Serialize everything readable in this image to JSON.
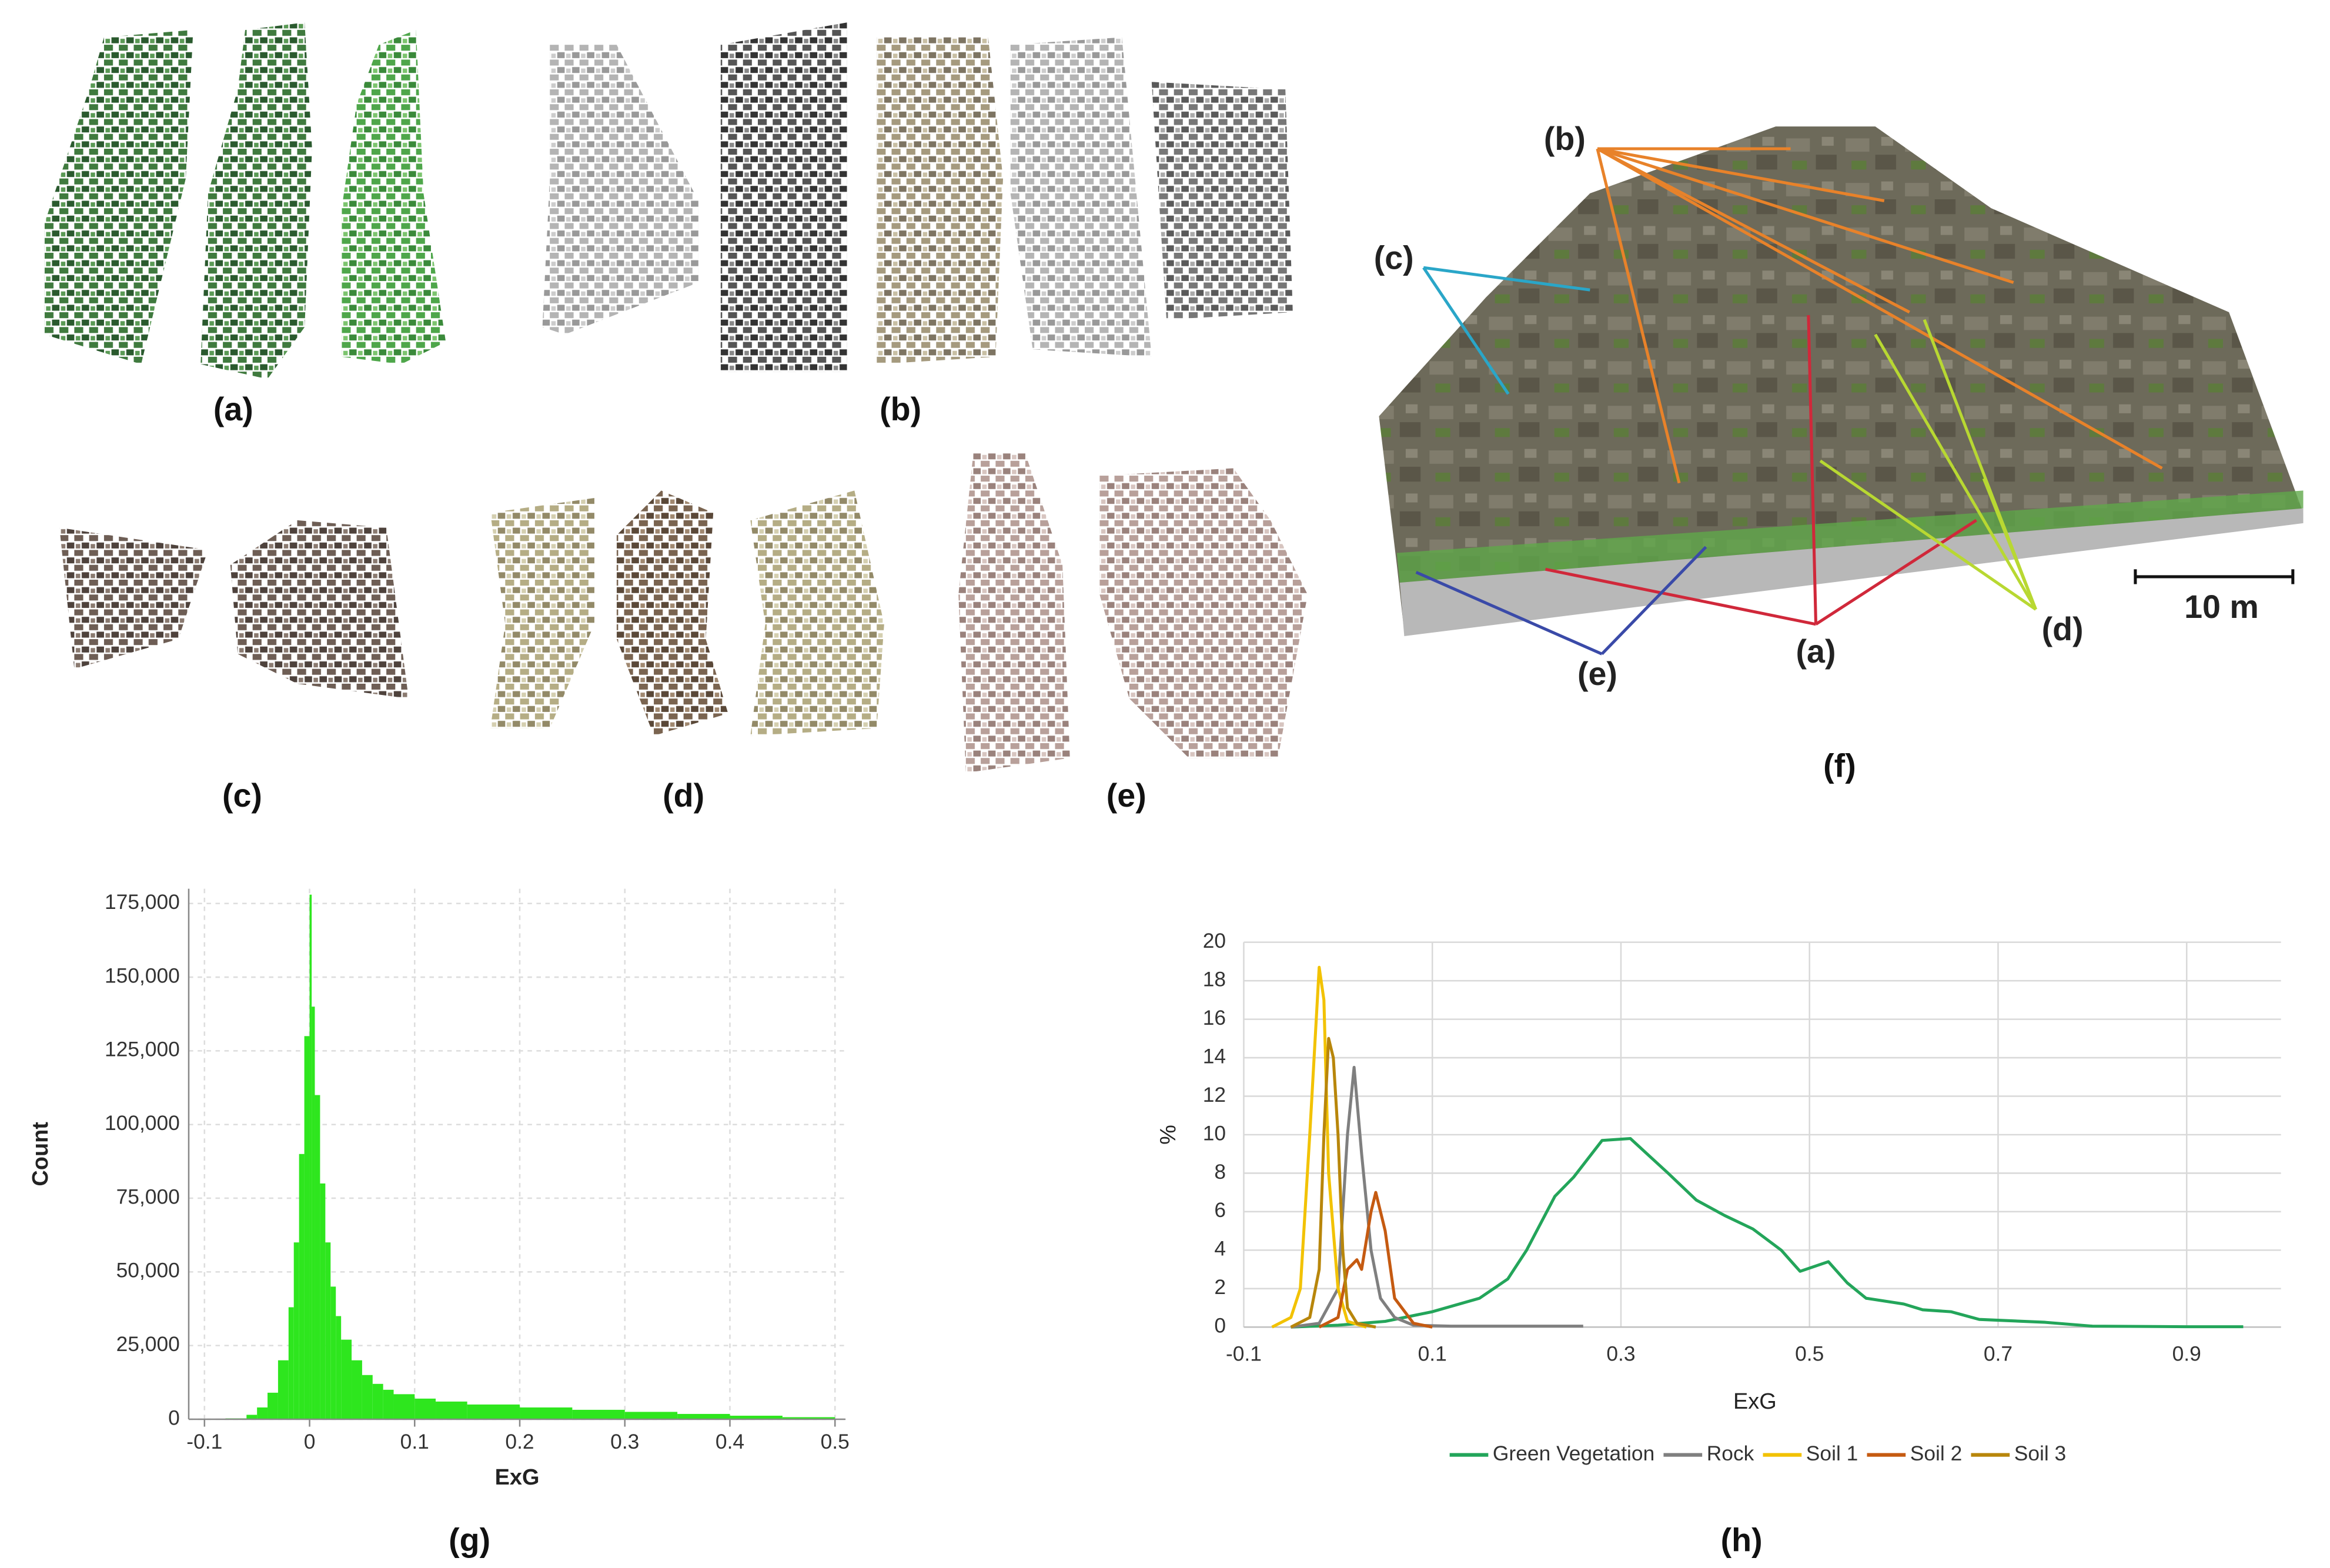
{
  "panel_labels": [
    "(a)",
    "(b)",
    "(c)",
    "(d)",
    "(e)",
    "(f)",
    "(g)",
    "(h)"
  ],
  "annotations": [
    {
      "text": "(b)",
      "color": "#e8822a"
    },
    {
      "text": "(c)",
      "color": "#2aa6c8"
    },
    {
      "text": "(a)",
      "color": "#d0283a"
    },
    {
      "text": "(d)",
      "color": "#b8d832"
    },
    {
      "text": "(e)",
      "color": "#3a4aa8"
    }
  ],
  "scale_bar": "10 m",
  "chart_data": [
    {
      "type": "histogram",
      "x_label": "ExG",
      "y_label": "Count",
      "bins": [
        -0.1,
        -0.08,
        -0.06,
        -0.05,
        -0.04,
        -0.03,
        -0.02,
        -0.015,
        -0.01,
        -0.005,
        0,
        0.002,
        0.005,
        0.01,
        0.015,
        0.02,
        0.025,
        0.03,
        0.04,
        0.05,
        0.06,
        0.07,
        0.08,
        0.1,
        0.12,
        0.15,
        0.2,
        0.25,
        0.3,
        0.35,
        0.4,
        0.45,
        0.5
      ],
      "values": [
        0,
        300,
        1500,
        4000,
        9000,
        20000,
        38000,
        60000,
        90000,
        130000,
        178000,
        140000,
        110000,
        80000,
        60000,
        45000,
        35000,
        27000,
        20000,
        15000,
        12000,
        10000,
        8500,
        7000,
        6000,
        5000,
        4000,
        3200,
        2500,
        1800,
        1200,
        700
      ],
      "color": "#2ee61e",
      "xlim": [
        -0.115,
        0.51
      ],
      "ylim": [
        0,
        180000
      ],
      "xticks": [
        -0.1,
        0,
        0.1,
        0.2,
        0.3,
        0.4,
        0.5
      ],
      "yticks": [
        0,
        {
          "value": 25000,
          "label": "25,000"
        },
        {
          "value": 50000,
          "label": "50,000"
        },
        {
          "value": 75000,
          "label": "75,000"
        },
        {
          "value": 100000,
          "label": "100,000"
        },
        {
          "value": 125000,
          "label": "125,000"
        },
        {
          "value": 150000,
          "label": "150,000"
        },
        {
          "value": 175000,
          "label": "175,000"
        }
      ],
      "grid": true
    },
    {
      "type": "line",
      "x_label": "ExG",
      "y_label": "%",
      "xlim": [
        -0.1,
        1.0
      ],
      "ylim": [
        0,
        20
      ],
      "xticks": [
        -0.1,
        0.1,
        0.3,
        0.5,
        0.7,
        0.9
      ],
      "yticks": [
        0,
        2,
        4,
        6,
        8,
        10,
        12,
        14,
        16,
        18,
        20
      ],
      "grid": true,
      "legend": "bottom",
      "series": [
        {
          "name": "Green Vegetation",
          "color": "#23a55a",
          "x": [
            -0.05,
            0,
            0.05,
            0.1,
            0.15,
            0.18,
            0.2,
            0.23,
            0.25,
            0.28,
            0.31,
            0.35,
            0.38,
            0.41,
            0.44,
            0.47,
            0.49,
            0.52,
            0.54,
            0.56,
            0.6,
            0.62,
            0.65,
            0.68,
            0.75,
            0.8,
            0.9,
            0.96
          ],
          "values": [
            0,
            0.1,
            0.3,
            0.8,
            1.5,
            2.5,
            4,
            6.8,
            7.8,
            9.7,
            9.8,
            8,
            6.6,
            5.8,
            5.1,
            4,
            2.9,
            3.4,
            2.3,
            1.5,
            1.2,
            0.9,
            0.8,
            0.4,
            0.25,
            0.05,
            0.02,
            0.02
          ]
        },
        {
          "name": "Rock",
          "color": "#7f7f7f",
          "x": [
            -0.05,
            -0.02,
            0,
            0.005,
            0.01,
            0.017,
            0.025,
            0.035,
            0.045,
            0.06,
            0.08,
            0.12,
            0.26
          ],
          "values": [
            0,
            0.2,
            2,
            6,
            10,
            13.5,
            9,
            4,
            1.5,
            0.5,
            0.1,
            0.05,
            0.05
          ]
        },
        {
          "name": "Soil 1",
          "color": "#f2c200",
          "x": [
            -0.07,
            -0.05,
            -0.04,
            -0.03,
            -0.02,
            -0.015,
            -0.01,
            0,
            0.01,
            0.03
          ],
          "values": [
            0,
            0.5,
            2,
            10,
            18.7,
            17,
            8,
            2,
            0.3,
            0
          ]
        },
        {
          "name": "Soil 2",
          "color": "#c55a11",
          "x": [
            -0.02,
            0,
            0.01,
            0.02,
            0.025,
            0.035,
            0.04,
            0.05,
            0.06,
            0.08,
            0.1
          ],
          "values": [
            0,
            0.5,
            3,
            3.5,
            3,
            6,
            7,
            5,
            1.5,
            0.2,
            0
          ]
        },
        {
          "name": "Soil 3",
          "color": "#b8860b",
          "x": [
            -0.05,
            -0.03,
            -0.02,
            -0.015,
            -0.01,
            -0.005,
            0,
            0.005,
            0.01,
            0.02,
            0.04
          ],
          "values": [
            0,
            0.5,
            3,
            10,
            15,
            14,
            10,
            4,
            1,
            0.2,
            0
          ]
        }
      ]
    }
  ]
}
